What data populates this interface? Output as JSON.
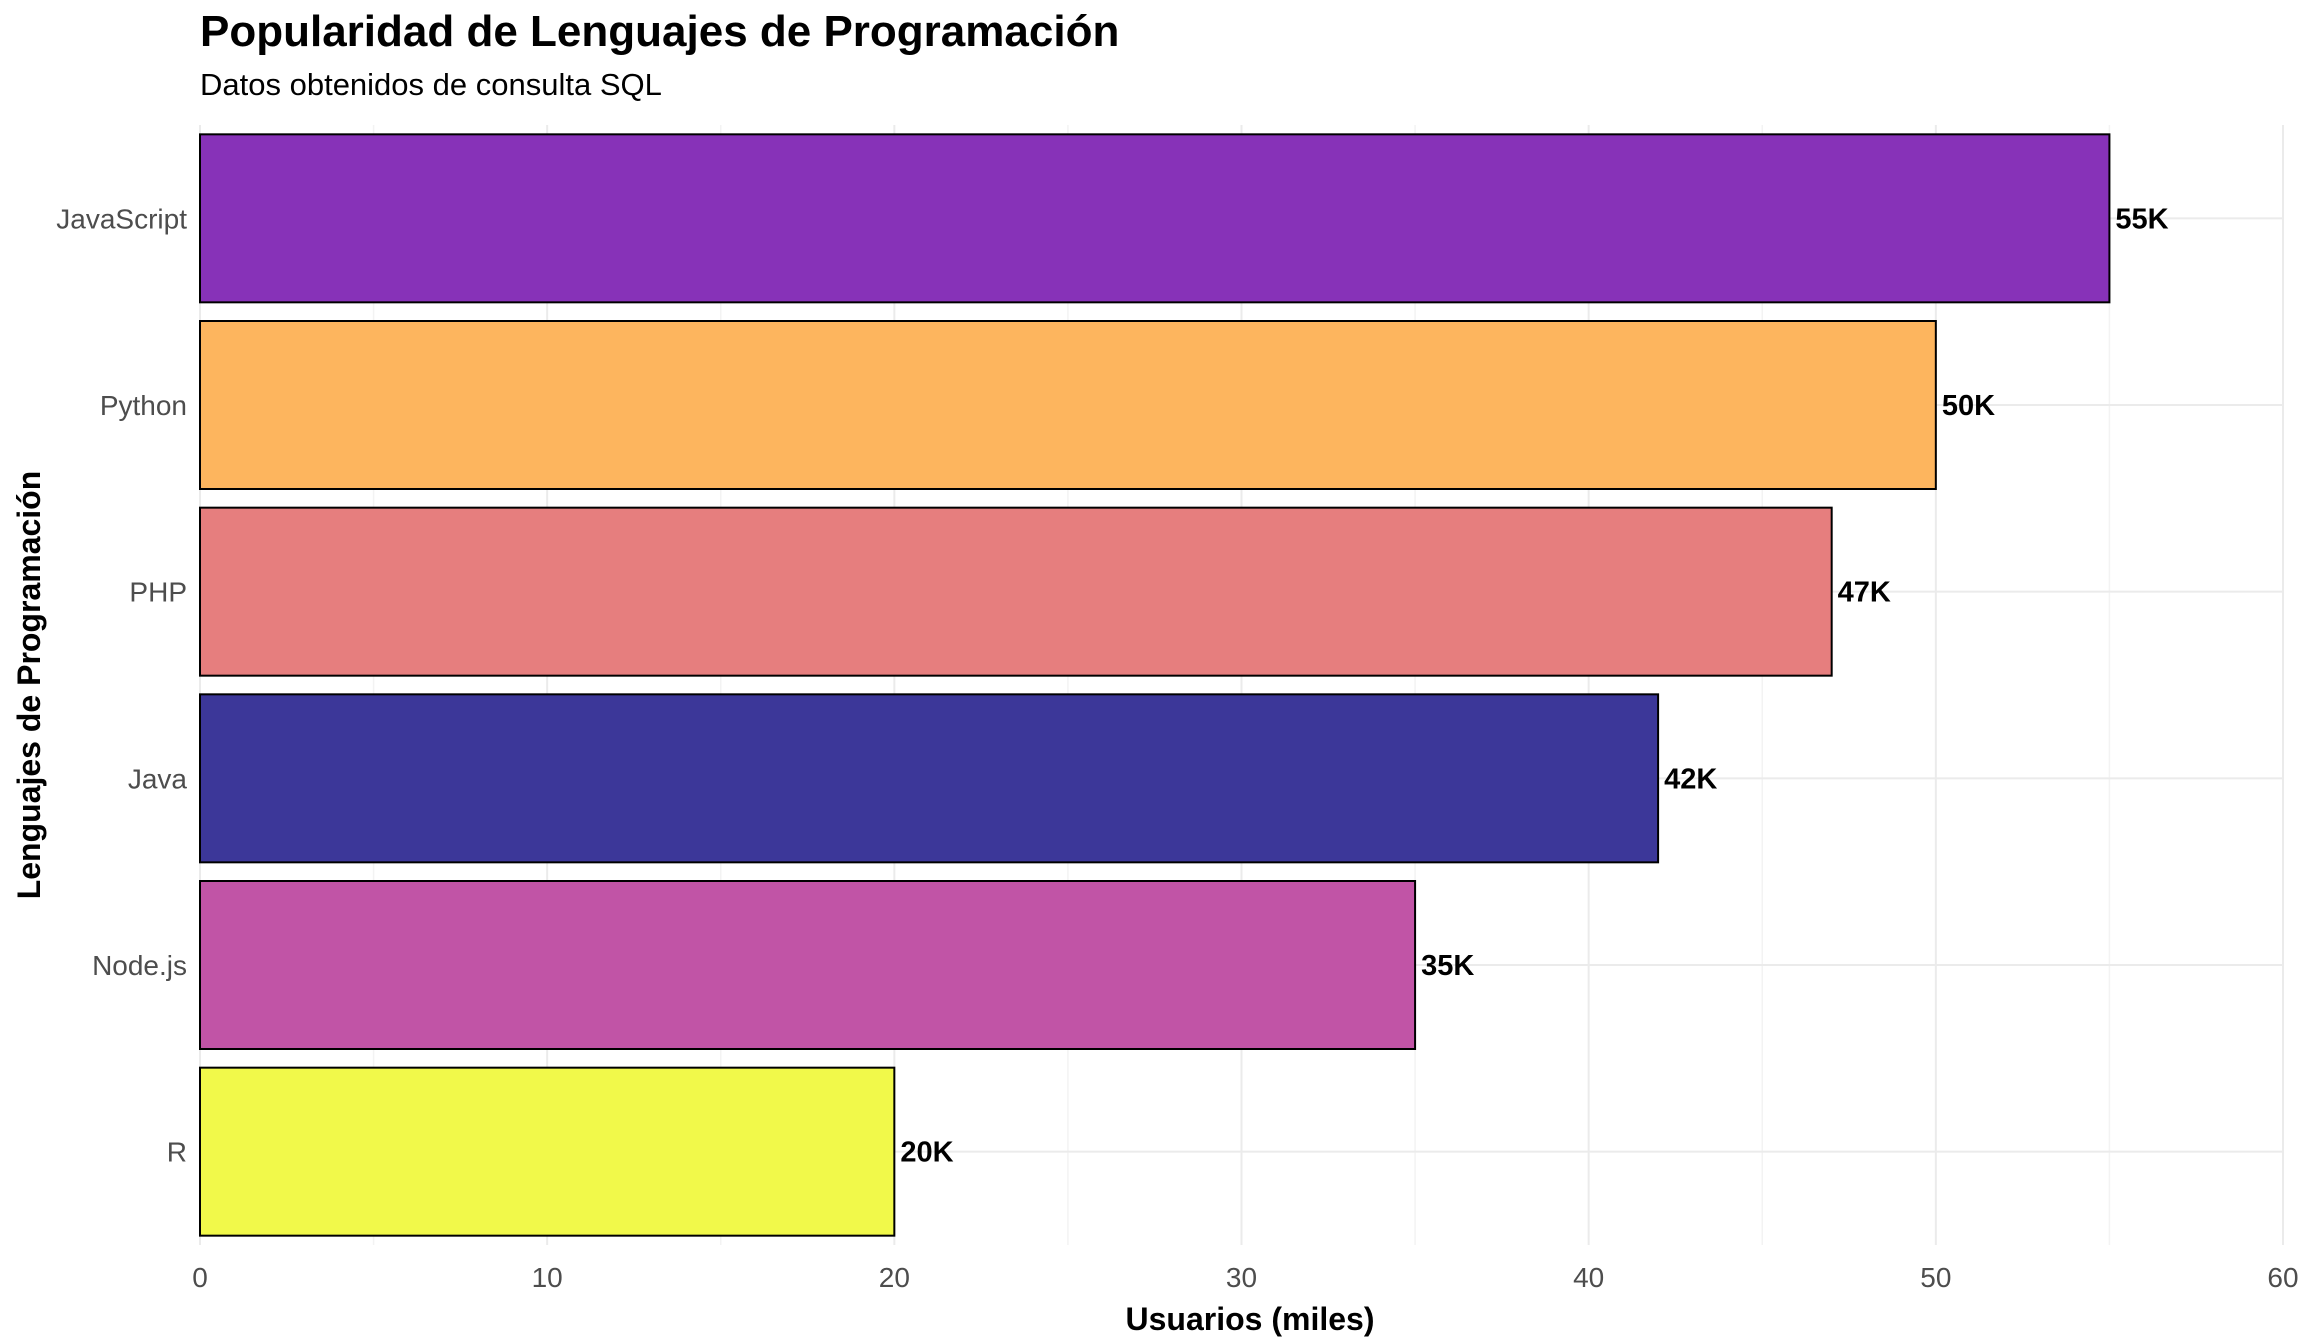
{
  "chart_data": {
    "type": "bar",
    "orientation": "horizontal",
    "title": "Popularidad de Lenguajes de Programación",
    "subtitle": "Datos obtenidos de consulta SQL",
    "xlabel": "Usuarios (miles)",
    "ylabel": "Lenguajes de Programación",
    "xlim": [
      0,
      60
    ],
    "x_ticks": [
      0,
      10,
      20,
      30,
      40,
      50,
      60
    ],
    "grid": true,
    "legend": "none",
    "categories": [
      "JavaScript",
      "Python",
      "PHP",
      "Java",
      "Node.js",
      "R"
    ],
    "values": [
      55,
      50,
      47,
      42,
      35,
      20
    ],
    "data_labels": [
      "55K",
      "50K",
      "47K",
      "42K",
      "35K",
      "20K"
    ],
    "colors": [
      "#8732b8",
      "#fdb55e",
      "#e67e7e",
      "#3c3799",
      "#c154a6",
      "#f1f94a"
    ]
  }
}
